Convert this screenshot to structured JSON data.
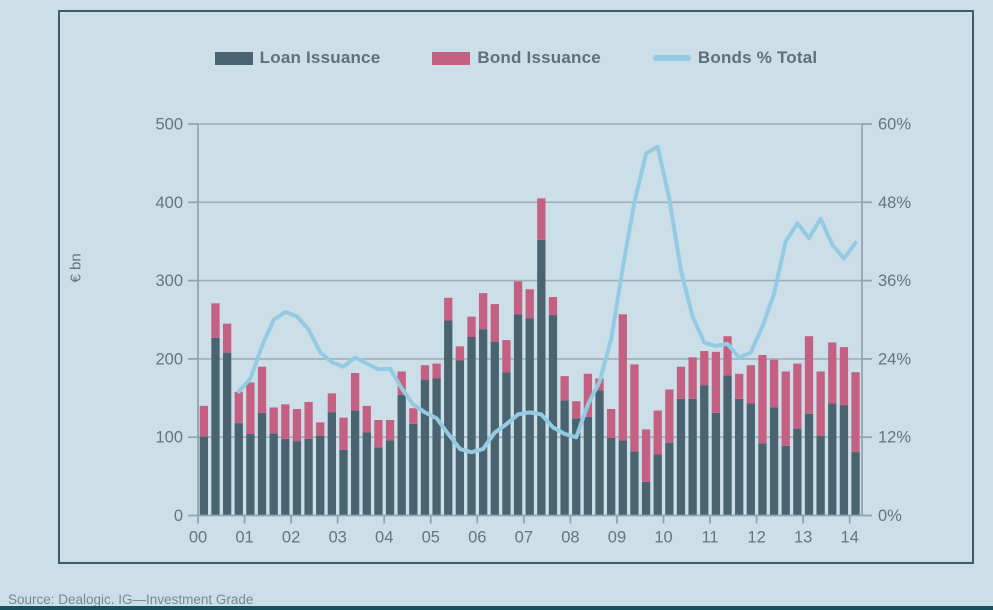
{
  "page": {
    "background_color": "#ccdfe9",
    "source_text": "Source: Dealogic. IG—Investment Grade",
    "bottom_strip_color": "#17515f"
  },
  "panel": {
    "border_color": "#3e5c6b"
  },
  "legend": {
    "loan_label": "Loan Issuance",
    "bond_label": "Bond Issuance",
    "line_label": "Bonds % Total"
  },
  "colors": {
    "loan_bar": "#4a6370",
    "bond_bar": "#c46182",
    "pct_line": "#93cbe3",
    "gridline": "#a0aeb8",
    "axis": "#93a4b0",
    "tick_text": "#64757d"
  },
  "chart_data": {
    "type": "bar",
    "subtype": "stacked-bars-with-line",
    "frequency": "quarterly",
    "x_year_labels": [
      "00",
      "01",
      "02",
      "03",
      "04",
      "05",
      "06",
      "07",
      "08",
      "09",
      "10",
      "11",
      "12",
      "13",
      "14"
    ],
    "quarters_per_year": 4,
    "n_quarters": 57,
    "ylabel_left": "€ bn",
    "ylim_left": [
      0,
      500
    ],
    "yticks_left": [
      0,
      100,
      200,
      300,
      400,
      500
    ],
    "ylim_right_pct": [
      0,
      60
    ],
    "yticks_right_labels": [
      "0%",
      "12%",
      "24%",
      "36%",
      "48%",
      "60%"
    ],
    "grid": true,
    "legend_position": "top-center",
    "series": [
      {
        "name": "Loan Issuance",
        "type": "bar",
        "stack": true,
        "unit": "EUR bn",
        "values": [
          101,
          227,
          208,
          118,
          104,
          131,
          105,
          98,
          95,
          98,
          102,
          132,
          84,
          134,
          106,
          87,
          96,
          154,
          117,
          173,
          175,
          249,
          198,
          228,
          238,
          222,
          183,
          257,
          252,
          352,
          256,
          147,
          124,
          126,
          160,
          99,
          96,
          82,
          43,
          78,
          93,
          149,
          149,
          166,
          131,
          179,
          149,
          143,
          92,
          138,
          89,
          111,
          130,
          102,
          143,
          141,
          81
        ]
      },
      {
        "name": "Bond Issuance",
        "type": "bar",
        "stack": true,
        "unit": "EUR bn",
        "values": [
          39,
          44,
          37,
          40,
          66,
          59,
          33,
          44,
          41,
          47,
          17,
          24,
          41,
          48,
          34,
          35,
          26,
          30,
          20,
          19,
          19,
          29,
          18,
          26,
          46,
          48,
          41,
          42,
          37,
          53,
          23,
          31,
          22,
          55,
          15,
          37,
          161,
          111,
          67,
          56,
          68,
          41,
          53,
          44,
          78,
          50,
          32,
          49,
          113,
          61,
          95,
          83,
          99,
          82,
          78,
          74,
          102
        ]
      },
      {
        "name": "Bonds % Total",
        "type": "line",
        "axis": "right",
        "unit": "%",
        "values": [
          null,
          null,
          null,
          19,
          21,
          26,
          30,
          31.2,
          30.5,
          28.5,
          25,
          23.5,
          22.8,
          24.2,
          23.3,
          22.4,
          22.5,
          19.5,
          17,
          15.8,
          14.9,
          12.5,
          10.2,
          9.7,
          10.2,
          12.7,
          14,
          15.5,
          15.8,
          15.5,
          13.5,
          12.5,
          12,
          17,
          20.5,
          27,
          38,
          48,
          55.5,
          56.5,
          48.5,
          37.5,
          30.5,
          26.5,
          26,
          26.3,
          24.2,
          25,
          29,
          34,
          42,
          44.8,
          42.5,
          45.5,
          41.5,
          39.4,
          41.8
        ]
      }
    ]
  }
}
